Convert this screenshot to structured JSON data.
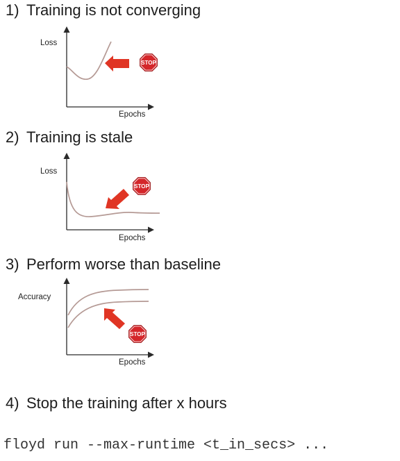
{
  "sections": [
    {
      "number": "1)",
      "title": "Training is not converging",
      "ylabel": "Loss",
      "xlabel": "Epochs",
      "stop": "STOP"
    },
    {
      "number": "2)",
      "title": "Training is stale",
      "ylabel": "Loss",
      "xlabel": "Epochs",
      "stop": "STOP"
    },
    {
      "number": "3)",
      "title": "Perform worse than baseline",
      "ylabel": "Accuracy",
      "xlabel": "Epochs",
      "stop": "STOP"
    },
    {
      "number": "4)",
      "title": "Stop the training after x hours"
    }
  ],
  "command": "floyd run --max-runtime <t_in_secs> ...",
  "colors": {
    "arrow": "#e03524",
    "stop_sign": "#d4262a",
    "curve": "#b59a95",
    "axis": "#2a2a2a"
  },
  "icons": [
    "stop-sign-icon",
    "red-arrow-icon"
  ]
}
